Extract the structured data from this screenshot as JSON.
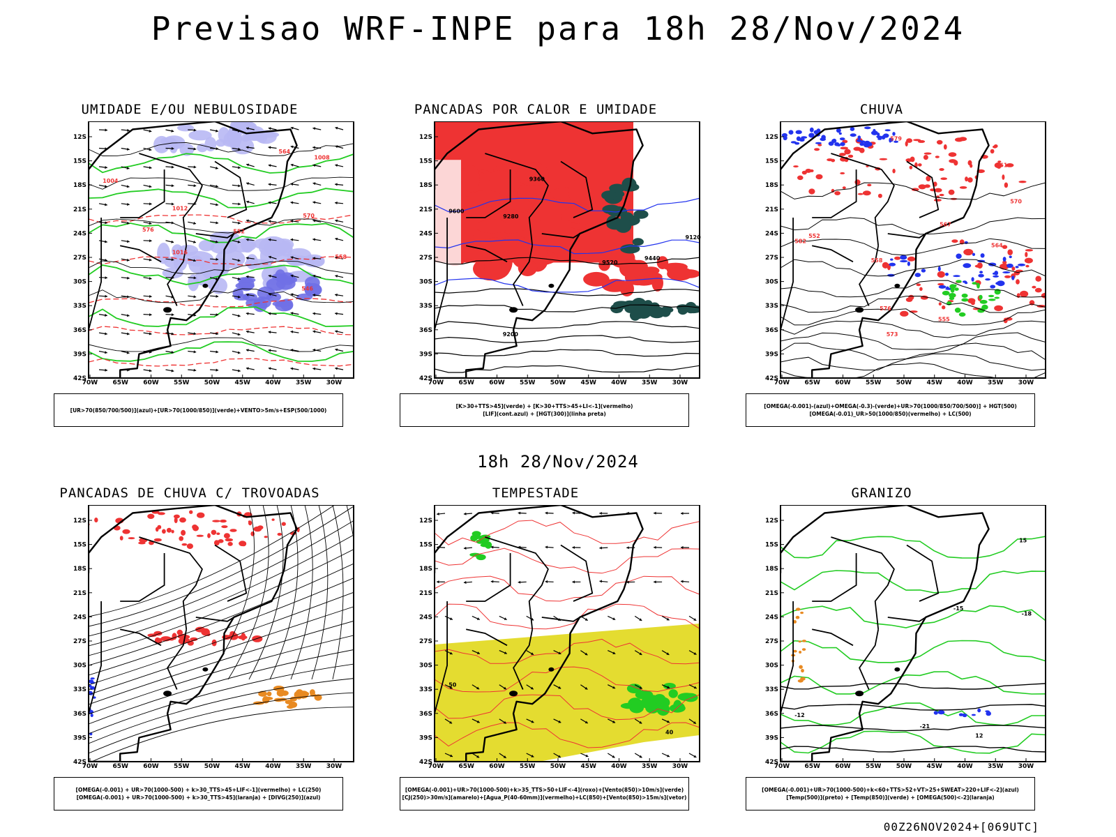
{
  "header": {
    "title": "Previsao WRF-INPE  para 18h 28/Nov/2024"
  },
  "subtitle": "18h 28/Nov/2024",
  "footer": "00Z26NOV2024+[069UTC]",
  "axes": {
    "lat_labels": [
      "12S",
      "15S",
      "18S",
      "21S",
      "24S",
      "27S",
      "30S",
      "33S",
      "36S",
      "39S",
      "42S"
    ],
    "lon_labels": [
      "70W",
      "65W",
      "60W",
      "55W",
      "50W",
      "45W",
      "40W",
      "35W",
      "30W"
    ]
  },
  "panels": [
    {
      "id": "umidade",
      "title": "UMIDADE E/OU NEBULOSIDADE",
      "legend": [
        "[UR>70(850/700/500)](azul)+[UR>70(1000/850)](verde)+VENTO>5m/s+ESP(500/1000)"
      ],
      "contour_labels": [
        "1004",
        "1008",
        "1012",
        "1016",
        "552",
        "570",
        "576",
        "564",
        "558",
        "546"
      ]
    },
    {
      "id": "pancadas-calor",
      "title": "PANCADAS POR CALOR E UMIDADE",
      "legend": [
        "[K>30+TTS>45](verde) + [K>30+TTS>45+LI<-1](vermelho)",
        "[LIF](cont.azul) + [HGT(300)](linha preta)"
      ],
      "contour_labels": [
        "9600",
        "9520",
        "9440",
        "9360",
        "9280",
        "9200",
        "9120"
      ]
    },
    {
      "id": "chuva",
      "title": "CHUVA",
      "legend": [
        "[OMEGA(-0.001)-(azul)+OMEGA(-0.3)-(verde)+UR>70(1000/850/700/500)] + HGT(500)",
        "[OMEGA(-0.01)_UR>50(1000/850)(vermelho) + LC(500)"
      ],
      "contour_labels": [
        "582",
        "579",
        "576",
        "573",
        "570",
        "567",
        "564",
        "561",
        "558",
        "555",
        "552"
      ]
    },
    {
      "id": "trovoadas",
      "title": "PANCADAS DE CHUVA C/ TROVOADAS",
      "legend": [
        "[OMEGA(-0.001) + UR>70(1000-500) + k>30_TTS>45+LIF<-1](vermelho) + LC(250)",
        "[OMEGA(-0.001) + UR>70(1000-500) + k>30_TTS>45](laranja) + [DIVG(250)](azul)"
      ],
      "contour_labels": []
    },
    {
      "id": "tempestade",
      "title": "TEMPESTADE",
      "legend": [
        "[OMEGA(-0.001)+UR>70(1000-500)+k>35_TTS>50+LIF<-4](roxo)+[Vento(850)>10m/s](verde)",
        "[CJ(250)>30m/s](amarelo)+[Agua_P(40-60mm)](vermelho)+LC(850)+[Vento(850)>15m/s](vetor)"
      ],
      "contour_labels": [
        "50",
        "40"
      ]
    },
    {
      "id": "granizo",
      "title": "GRANIZO",
      "legend": [
        "[OMEGA(-0.001)+UR>70(1000-500)+k<60+TTS>52+VT>25+SWEAT>220+LIF<-2](azul)",
        "[Temp(500)](preto) + [Temp(850)](verde) + [OMEGA(500)<-2](laranja)"
      ],
      "contour_labels": [
        "-12",
        "-15",
        "-18",
        "-21",
        "15",
        "12"
      ]
    }
  ],
  "colors": {
    "red": "#ee3333",
    "blue": "#2233ee",
    "green": "#22cc22",
    "lightblue": "#b8b8f4",
    "midblue": "#7070e6",
    "darkteal": "#1e4e4a",
    "yellow": "#e4dc30",
    "orange": "#e88a22",
    "purple": "#aa22cc",
    "black": "#000000"
  }
}
